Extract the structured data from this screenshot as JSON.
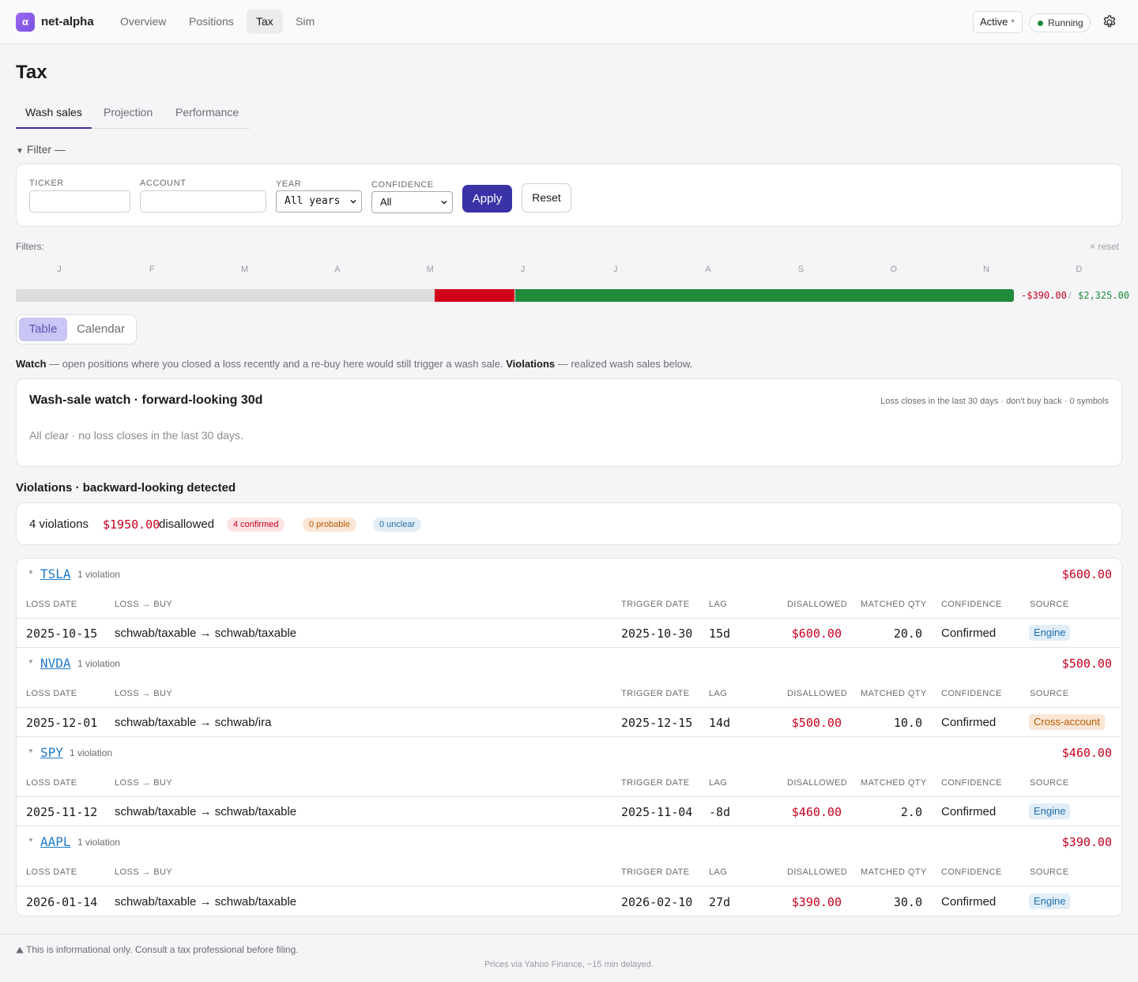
{
  "app": {
    "logo_glyph": "α",
    "name": "net-alpha",
    "nav": [
      {
        "label": "Overview",
        "active": false
      },
      {
        "label": "Positions",
        "active": false
      },
      {
        "label": "Tax",
        "active": true
      },
      {
        "label": "Sim",
        "active": false
      }
    ],
    "mode_select": "Active",
    "status": "Running",
    "status_color": "#1f8a3a",
    "settings_icon": "gear-icon"
  },
  "page": {
    "title": "Tax",
    "tabs": [
      {
        "label": "Wash sales",
        "active": true
      },
      {
        "label": "Projection",
        "active": false
      },
      {
        "label": "Performance",
        "active": false
      }
    ]
  },
  "filter": {
    "toggle_label": "Filter —",
    "fields": {
      "ticker": {
        "label": "TICKER",
        "value": ""
      },
      "account": {
        "label": "ACCOUNT",
        "value": ""
      },
      "year": {
        "label": "YEAR",
        "value": "All years"
      },
      "confidence": {
        "label": "CONFIDENCE",
        "value": "All"
      }
    },
    "apply_label": "Apply",
    "reset_label": "Reset"
  },
  "timeline": {
    "filters_label": "Filters:",
    "reset_label": "× reset",
    "months": [
      "J",
      "F",
      "M",
      "A",
      "M",
      "J",
      "J",
      "A",
      "S",
      "O",
      "N",
      "D"
    ],
    "segments": [
      {
        "kind": "neutral",
        "fraction": 0.42,
        "color": "#dcdcdf"
      },
      {
        "kind": "loss",
        "fraction": 0.08,
        "color": "#d10018"
      },
      {
        "kind": "gain",
        "fraction": 0.5,
        "color": "#218b3c"
      }
    ],
    "loss_total": "-$390.00",
    "separator": "/",
    "gain_total": "$2,325.00"
  },
  "view_toggle": {
    "table_label": "Table",
    "calendar_label": "Calendar",
    "active": "table"
  },
  "explain": {
    "watch_bold": "Watch",
    "watch_text": " — open positions where you closed a loss recently and a re-buy here would still trigger a wash sale. ",
    "violations_bold": "Violations",
    "violations_text": " — realized wash sales below."
  },
  "watch_card": {
    "title": "Wash-sale watch · forward-looking 30d",
    "note": "Loss closes in the last 30 days · don't buy back · 0 symbols",
    "empty_message": "All clear · no loss closes in the last 30 days."
  },
  "violations": {
    "heading": "Violations · backward-looking detected",
    "summary": {
      "count_text": "4 violations",
      "amount": "$1950.00",
      "disallowed_label": "disallowed",
      "confirmed": "4 confirmed",
      "probable": "0 probable",
      "unclear": "0 unclear"
    },
    "columns": {
      "loss_date": "LOSS DATE",
      "loss_buy": "LOSS → BUY",
      "trigger_date": "TRIGGER DATE",
      "lag": "LAG",
      "disallowed": "DISALLOWED",
      "matched_qty": "MATCHED QTY",
      "confidence": "CONFIDENCE",
      "source": "SOURCE"
    },
    "groups": [
      {
        "ticker": "TSLA",
        "count_text": "1 violation",
        "total": "$600.00",
        "rows": [
          {
            "loss_date": "2025-10-15",
            "loss_buy": "schwab/taxable → schwab/taxable",
            "trigger_date": "2025-10-30",
            "lag": "15d",
            "disallowed": "$600.00",
            "matched_qty": "20.0",
            "confidence": "Confirmed",
            "source": "Engine",
            "source_kind": "engine"
          }
        ]
      },
      {
        "ticker": "NVDA",
        "count_text": "1 violation",
        "total": "$500.00",
        "rows": [
          {
            "loss_date": "2025-12-01",
            "loss_buy": "schwab/taxable → schwab/ira",
            "trigger_date": "2025-12-15",
            "lag": "14d",
            "disallowed": "$500.00",
            "matched_qty": "10.0",
            "confidence": "Confirmed",
            "source": "Cross-account",
            "source_kind": "cross"
          }
        ]
      },
      {
        "ticker": "SPY",
        "count_text": "1 violation",
        "total": "$460.00",
        "rows": [
          {
            "loss_date": "2025-11-12",
            "loss_buy": "schwab/taxable → schwab/taxable",
            "trigger_date": "2025-11-04",
            "lag": "-8d",
            "disallowed": "$460.00",
            "matched_qty": "2.0",
            "confidence": "Confirmed",
            "source": "Engine",
            "source_kind": "engine"
          }
        ]
      },
      {
        "ticker": "AAPL",
        "count_text": "1 violation",
        "total": "$390.00",
        "rows": [
          {
            "loss_date": "2026-01-14",
            "loss_buy": "schwab/taxable → schwab/taxable",
            "trigger_date": "2026-02-10",
            "lag": "27d",
            "disallowed": "$390.00",
            "matched_qty": "30.0",
            "confidence": "Confirmed",
            "source": "Engine",
            "source_kind": "engine"
          }
        ]
      }
    ]
  },
  "footer": {
    "warning_icon": "warning-icon",
    "warning": "This is informational only. Consult a tax professional before filing.",
    "credit": "Prices via Yahoo Finance, ~15 min delayed."
  }
}
